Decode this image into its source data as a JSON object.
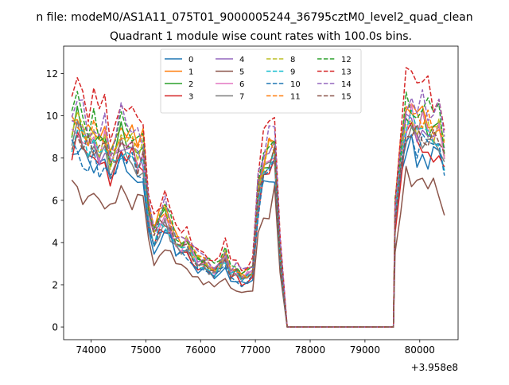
{
  "suptitle": "n file: modeM0/AS1A11_075T01_9000005244_36795cztM0_level2_quad_clean",
  "chart_data": {
    "type": "line",
    "title": "Quadrant 1 module wise count rates with 100.0s bins.",
    "xlabel": "",
    "ylabel": "",
    "x_offset_label": "+3.958e8",
    "x_offset": 395800000,
    "xlim": [
      73500,
      80700
    ],
    "ylim": [
      -0.6,
      13.3
    ],
    "xticks": [
      74000,
      75000,
      76000,
      77000,
      78000,
      79000,
      80000
    ],
    "xtick_labels": [
      "74000",
      "75000",
      "76000",
      "77000",
      "78000",
      "79000",
      "80000"
    ],
    "yticks": [
      0,
      2,
      4,
      6,
      8,
      10,
      12
    ],
    "ytick_labels": [
      "0",
      "2",
      "4",
      "6",
      "8",
      "10",
      "12"
    ],
    "grid": false,
    "legend_placement": "upper-center",
    "legend_columns": 4,
    "x_anchor": {
      "start": 73650,
      "step": 100,
      "gap_start": 77580,
      "gap_end": 79520,
      "resume": 79550,
      "end": 80450
    },
    "series": [
      {
        "name": "0",
        "color": "#1f77b4",
        "style": "solid",
        "level": 0.88,
        "seed": 1
      },
      {
        "name": "1",
        "color": "#ff7f0e",
        "style": "solid",
        "level": 1.08,
        "seed": 2
      },
      {
        "name": "2",
        "color": "#2ca02c",
        "style": "solid",
        "level": 1.02,
        "seed": 3
      },
      {
        "name": "3",
        "color": "#d62728",
        "style": "solid",
        "level": 0.93,
        "seed": 4
      },
      {
        "name": "4",
        "color": "#9467bd",
        "style": "solid",
        "level": 1.0,
        "seed": 5
      },
      {
        "name": "5",
        "color": "#8c564b",
        "style": "solid",
        "level": 0.72,
        "seed": 6
      },
      {
        "name": "6",
        "color": "#e377c2",
        "style": "solid",
        "level": 1.01,
        "seed": 7
      },
      {
        "name": "7",
        "color": "#7f7f7f",
        "style": "solid",
        "level": 0.95,
        "seed": 8
      },
      {
        "name": "8",
        "color": "#bcbd22",
        "style": "dashed",
        "level": 1.03,
        "seed": 9
      },
      {
        "name": "9",
        "color": "#17becf",
        "style": "dashed",
        "level": 0.97,
        "seed": 10
      },
      {
        "name": "10",
        "color": "#1f77b4",
        "style": "dashed",
        "level": 0.9,
        "seed": 11
      },
      {
        "name": "11",
        "color": "#ff7f0e",
        "style": "dashed",
        "level": 1.05,
        "seed": 12
      },
      {
        "name": "12",
        "color": "#2ca02c",
        "style": "dashed",
        "level": 1.1,
        "seed": 13
      },
      {
        "name": "13",
        "color": "#d62728",
        "style": "dashed",
        "level": 1.2,
        "seed": 14
      },
      {
        "name": "14",
        "color": "#9467bd",
        "style": "dashed",
        "level": 1.12,
        "seed": 15
      },
      {
        "name": "15",
        "color": "#8c564b",
        "style": "dashed",
        "level": 0.98,
        "seed": 16
      }
    ],
    "base_profile": [
      [
        73650,
        9.2
      ],
      [
        73750,
        9.6
      ],
      [
        73850,
        9.0
      ],
      [
        73950,
        8.6
      ],
      [
        74050,
        8.9
      ],
      [
        74150,
        8.3
      ],
      [
        74250,
        8.7
      ],
      [
        74350,
        7.6
      ],
      [
        74450,
        8.3
      ],
      [
        74550,
        8.9
      ],
      [
        74650,
        8.1
      ],
      [
        74750,
        8.5
      ],
      [
        74850,
        7.9
      ],
      [
        74950,
        8.1
      ],
      [
        75050,
        5.3
      ],
      [
        75150,
        4.3
      ],
      [
        75250,
        4.9
      ],
      [
        75350,
        5.2
      ],
      [
        75450,
        4.6
      ],
      [
        75550,
        4.0
      ],
      [
        75650,
        3.8
      ],
      [
        75750,
        3.9
      ],
      [
        75850,
        3.4
      ],
      [
        75950,
        3.1
      ],
      [
        76050,
        3.0
      ],
      [
        76150,
        2.8
      ],
      [
        76250,
        2.6
      ],
      [
        76350,
        2.9
      ],
      [
        76450,
        3.3
      ],
      [
        76550,
        2.5
      ],
      [
        76650,
        2.6
      ],
      [
        76750,
        2.3
      ],
      [
        76850,
        2.4
      ],
      [
        76950,
        2.6
      ],
      [
        77050,
        6.2
      ],
      [
        77150,
        7.6
      ],
      [
        77250,
        8.0
      ],
      [
        77350,
        8.4
      ],
      [
        77450,
        3.5
      ],
      [
        77580,
        0.0
      ],
      [
        79520,
        0.0
      ],
      [
        79550,
        5.2
      ],
      [
        79650,
        7.9
      ],
      [
        79750,
        9.6
      ],
      [
        79850,
        9.8
      ],
      [
        79950,
        9.2
      ],
      [
        80050,
        9.5
      ],
      [
        80150,
        9.3
      ],
      [
        80250,
        9.1
      ],
      [
        80350,
        9.4
      ],
      [
        80450,
        8.0
      ]
    ]
  },
  "legend_entries": [
    "0",
    "1",
    "2",
    "3",
    "4",
    "5",
    "6",
    "7",
    "8",
    "9",
    "10",
    "11",
    "12",
    "13",
    "14",
    "15"
  ]
}
